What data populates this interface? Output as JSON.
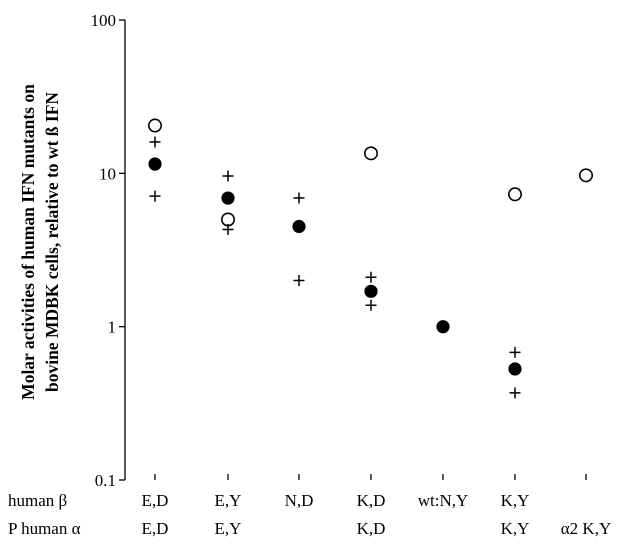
{
  "chart_data": {
    "type": "scatter",
    "title": "",
    "ylabel_lines": [
      "Molar activities of human IFN mutants on",
      "bovine MDBK cells, relative to wt ß IFN"
    ],
    "xlabel": "",
    "y_scale": "log",
    "ylim": [
      0.1,
      100
    ],
    "y_ticks": [
      {
        "value": 0.1,
        "label": "0.1"
      },
      {
        "value": 1,
        "label": "1"
      },
      {
        "value": 10,
        "label": "10"
      },
      {
        "value": 100,
        "label": "100"
      }
    ],
    "grid": false,
    "category_rows": [
      {
        "label": "human β",
        "values": [
          "E,D",
          "E,Y",
          "N,D",
          "K,D",
          "wt:N,Y",
          "K,Y",
          ""
        ]
      },
      {
        "label": "P human α",
        "values": [
          "E,D",
          "E,Y",
          "",
          "K,D",
          "",
          "K,Y",
          "α2 K,Y"
        ]
      }
    ],
    "series": [
      {
        "marker": "filled-circle",
        "points": [
          [
            1,
            11.5
          ],
          [
            2,
            6.9
          ],
          [
            3,
            4.5
          ],
          [
            4,
            1.7
          ],
          [
            5,
            1.0
          ],
          [
            6,
            0.53
          ]
        ]
      },
      {
        "marker": "open-circle",
        "points": [
          [
            1,
            20.5
          ],
          [
            2,
            5.0
          ],
          [
            4,
            13.5
          ],
          [
            6,
            7.3
          ],
          [
            7,
            9.7
          ]
        ]
      },
      {
        "marker": "plus",
        "points": [
          [
            1,
            16.0
          ],
          [
            1,
            7.1
          ],
          [
            2,
            9.6
          ],
          [
            2,
            4.3
          ],
          [
            3,
            6.9
          ],
          [
            3,
            2.0
          ],
          [
            4,
            2.1
          ],
          [
            4,
            1.38
          ],
          [
            6,
            0.68
          ],
          [
            6,
            0.37
          ]
        ]
      }
    ]
  }
}
